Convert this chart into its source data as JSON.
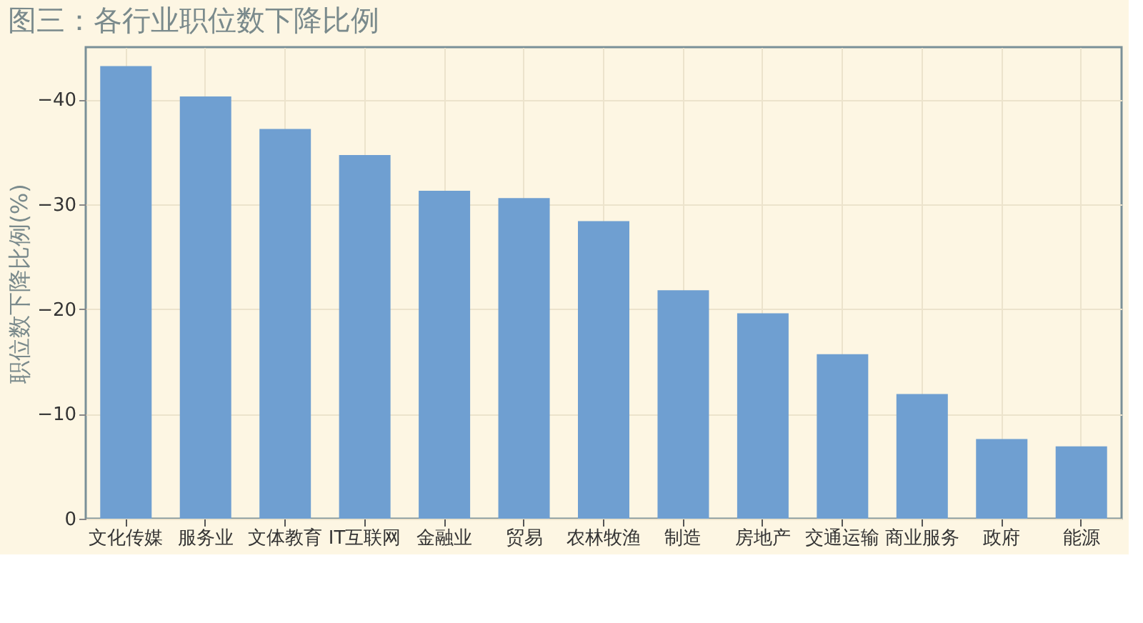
{
  "chart_data": {
    "type": "bar",
    "title": "图三：各行业职位数下降比例",
    "ylabel": "职位数下降比例(%)",
    "categories": [
      "文化传媒",
      "服务业",
      "文体教育",
      "IT互联网",
      "金融业",
      "贸易",
      "农林牧渔",
      "制造",
      "房地产",
      "交通运输",
      "商业服务",
      "政府",
      "能源"
    ],
    "values": [
      -43.2,
      -40.3,
      -37.2,
      -34.7,
      -31.3,
      -30.6,
      -28.4,
      -21.8,
      -19.6,
      -15.7,
      -11.9,
      -7.6,
      -6.9
    ],
    "color": "#6f9fd1",
    "ylim": [
      0,
      -45
    ],
    "yticks": [
      0,
      -10,
      -20,
      -30,
      -40
    ],
    "grid": true
  }
}
